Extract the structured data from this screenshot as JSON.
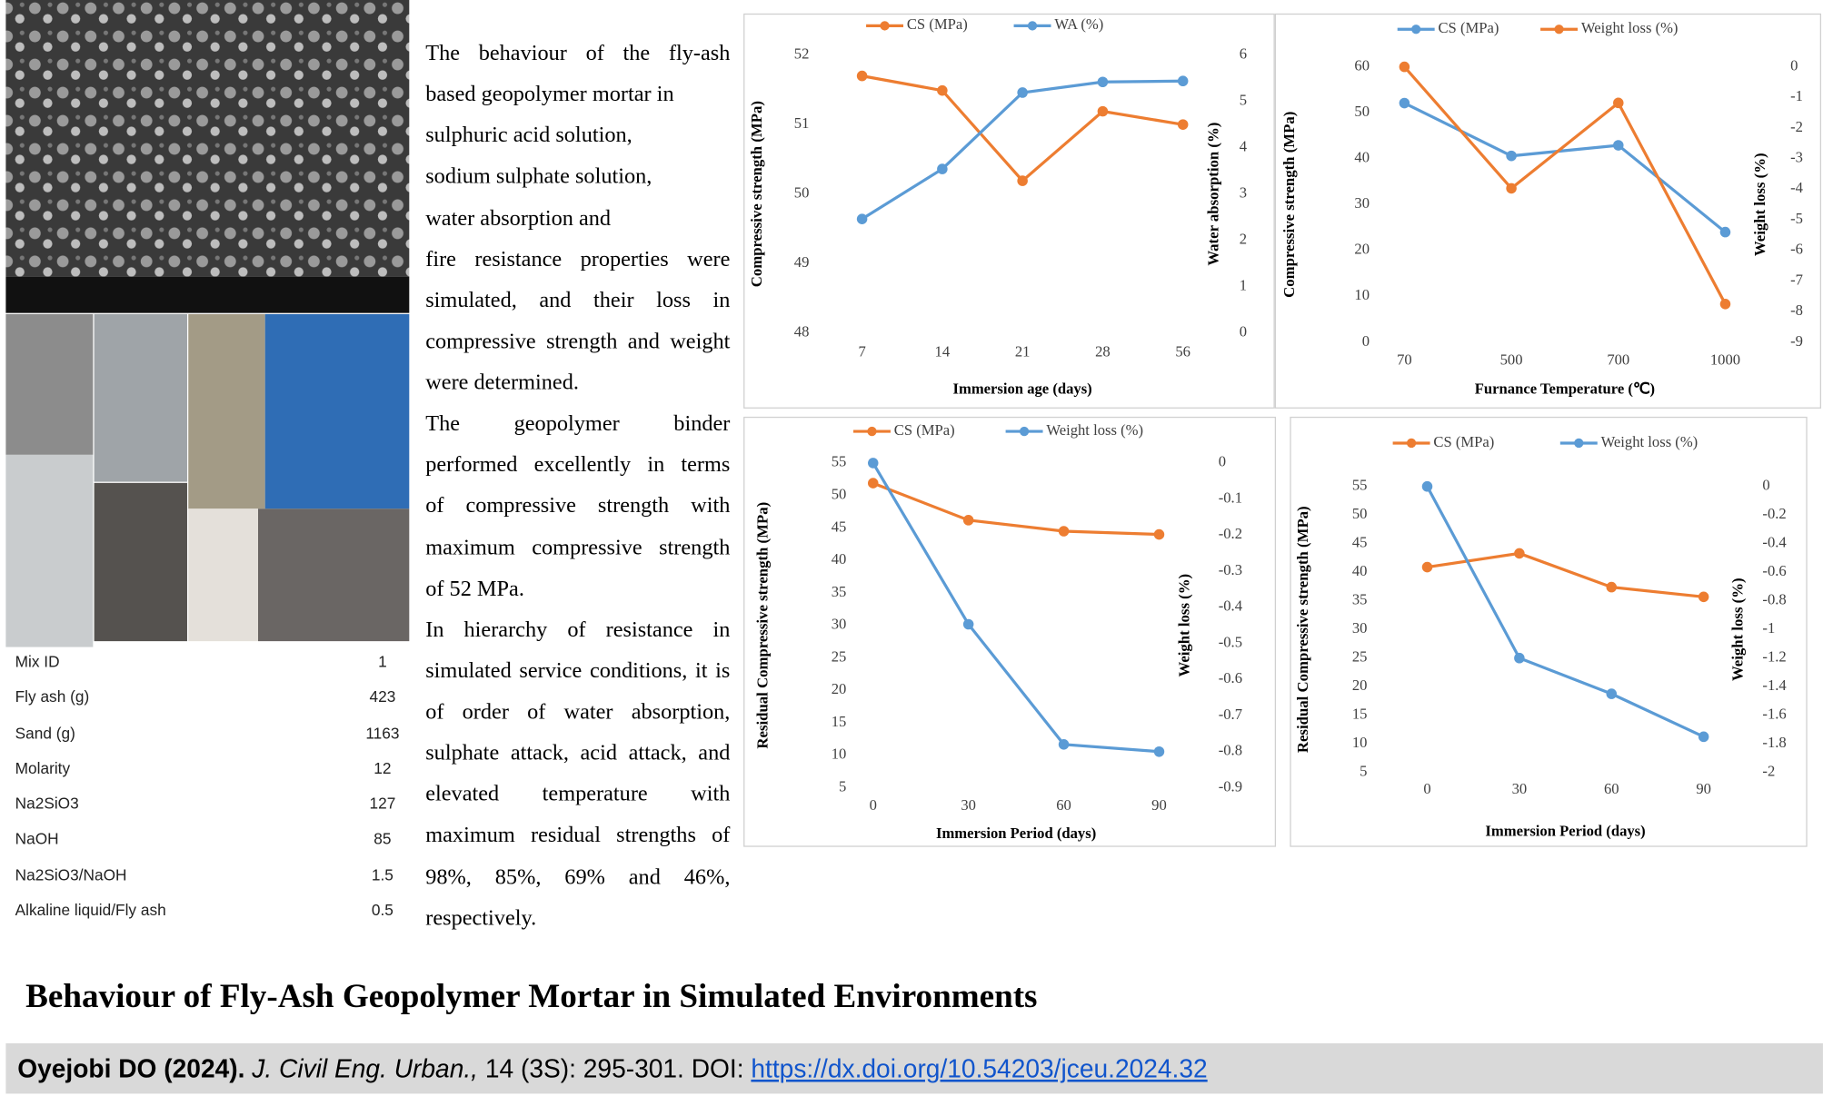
{
  "abstract": {
    "paragraphs": [
      [
        "The behaviour of the fly-ash",
        "based geopolymer mortar in",
        "sulphuric acid solution,",
        "sodium sulphate solution,",
        "water absorption and",
        "fire resistance properties were",
        "simulated, and their loss in",
        "compressive strength and weight",
        "were determined."
      ],
      [
        "The geopolymer binder",
        "performed excellently in terms",
        "of compressive strength with",
        "maximum compressive strength",
        "of 52 MPa."
      ],
      [
        "In hierarchy of resistance in",
        "simulated service conditions, it is",
        "of order of water absorption,",
        "sulphate attack, acid attack, and",
        "elevated temperature with",
        "maximum residual strengths of",
        "98%, 85%, 69% and 46%,",
        "respectively."
      ]
    ]
  },
  "table": {
    "rows": [
      [
        "Mix ID",
        "1"
      ],
      [
        "Fly ash (g)",
        "423"
      ],
      [
        "Sand (g)",
        "1163"
      ],
      [
        "Molarity",
        "12"
      ],
      [
        "Na2SiO3",
        "127"
      ],
      [
        "NaOH",
        "85"
      ],
      [
        "Na2SiO3/NaOH",
        "1.5"
      ],
      [
        "Alkaline liquid/Fly ash",
        "0.5"
      ]
    ]
  },
  "title": "Behaviour of Fly-Ash Geopolymer Mortar in Simulated Environments",
  "citation": {
    "author": "Oyejobi DO (2024).",
    "journal": "J. Civil Eng. Urban.,",
    "details": "14 (3S): 295-301. DOI:",
    "doi": "https://dx.doi.org/10.54203/jceu.2024.32"
  },
  "chart_data": [
    {
      "type": "line",
      "x_label": "Immersion age (days)",
      "y_label": "Compressive strength (MPa)",
      "y2_label": "Water absorption (%)",
      "categories": [
        "7",
        "14",
        "21",
        "28",
        "56"
      ],
      "ylim": [
        48,
        52
      ],
      "yticks": [
        48,
        49,
        50,
        51,
        52
      ],
      "y2lim": [
        0,
        6
      ],
      "y2ticks": [
        0,
        1,
        2,
        3,
        4,
        5,
        6
      ],
      "grid": false,
      "series": [
        {
          "name": "CS (MPa)",
          "color": "#ed7d31",
          "values": [
            51.7,
            51.49,
            50.19,
            51.19,
            51.0
          ]
        },
        {
          "name": "WA (%)",
          "color": "#5b9bd5",
          "axis": "y2",
          "values": [
            2.46,
            3.54,
            5.19,
            5.42,
            5.44
          ]
        }
      ]
    },
    {
      "type": "line",
      "x_label": "Furnance Temperature (℃)",
      "y_label": "Compressive strength (MPa)",
      "y2_label": "Weight loss (%)",
      "categories": [
        "70",
        "500",
        "700",
        "1000"
      ],
      "ylim": [
        0,
        60
      ],
      "yticks": [
        0,
        10,
        20,
        30,
        40,
        50,
        60
      ],
      "y2lim": [
        -9,
        0
      ],
      "y2ticks": [
        0,
        -1,
        -2,
        -3,
        -4,
        -5,
        -6,
        -7,
        -8,
        -9
      ],
      "grid": false,
      "series": [
        {
          "name": "CS (MPa)",
          "color": "#5b9bd5",
          "values": [
            52.1,
            40.6,
            42.9,
            24.0
          ]
        },
        {
          "name": "Weight loss (%)",
          "color": "#ed7d31",
          "axis": "y2",
          "values": [
            0,
            -3.97,
            -1.18,
            -7.75
          ]
        }
      ]
    },
    {
      "type": "line",
      "x_label": "Immersion Period (days)",
      "y_label": "Residual Compressive strength (MPa)",
      "y2_label": "Weight loss (%)",
      "categories": [
        "0",
        "30",
        "60",
        "90"
      ],
      "ylim": [
        5,
        55
      ],
      "yticks": [
        5,
        10,
        15,
        20,
        25,
        30,
        35,
        40,
        45,
        50,
        55
      ],
      "y2lim": [
        -0.9,
        0
      ],
      "y2ticks": [
        0,
        -0.1,
        -0.2,
        -0.3,
        -0.4,
        -0.5,
        -0.6,
        -0.7,
        -0.8,
        -0.9
      ],
      "grid": false,
      "series": [
        {
          "name": "CS (MPa)",
          "color": "#ed7d31",
          "values": [
            51.9,
            46.2,
            44.5,
            44.0
          ]
        },
        {
          "name": "Weight loss (%)",
          "color": "#5b9bd5",
          "axis": "y2",
          "values": [
            0,
            -0.447,
            -0.78,
            -0.8
          ]
        }
      ]
    },
    {
      "type": "line",
      "x_label": "Immersion Period (days)",
      "y_label": "Residual Compressive strength (MPa)",
      "y2_label": "Weight loss (%)",
      "categories": [
        "0",
        "30",
        "60",
        "90"
      ],
      "ylim": [
        5,
        55
      ],
      "yticks": [
        5,
        10,
        15,
        20,
        25,
        30,
        35,
        40,
        45,
        50,
        55
      ],
      "y2lim": [
        -2,
        0
      ],
      "y2ticks": [
        0,
        -0.2,
        -0.4,
        -0.6,
        -0.8,
        -1,
        -1.2,
        -1.4,
        -1.6,
        -1.8,
        -2
      ],
      "grid": false,
      "series": [
        {
          "name": "CS (MPa)",
          "color": "#ed7d31",
          "values": [
            40.9,
            43.3,
            37.4,
            35.7
          ]
        },
        {
          "name": "Weight loss (%)",
          "color": "#5b9bd5",
          "axis": "y2",
          "values": [
            0,
            -1.2,
            -1.45,
            -1.75
          ]
        }
      ]
    }
  ]
}
